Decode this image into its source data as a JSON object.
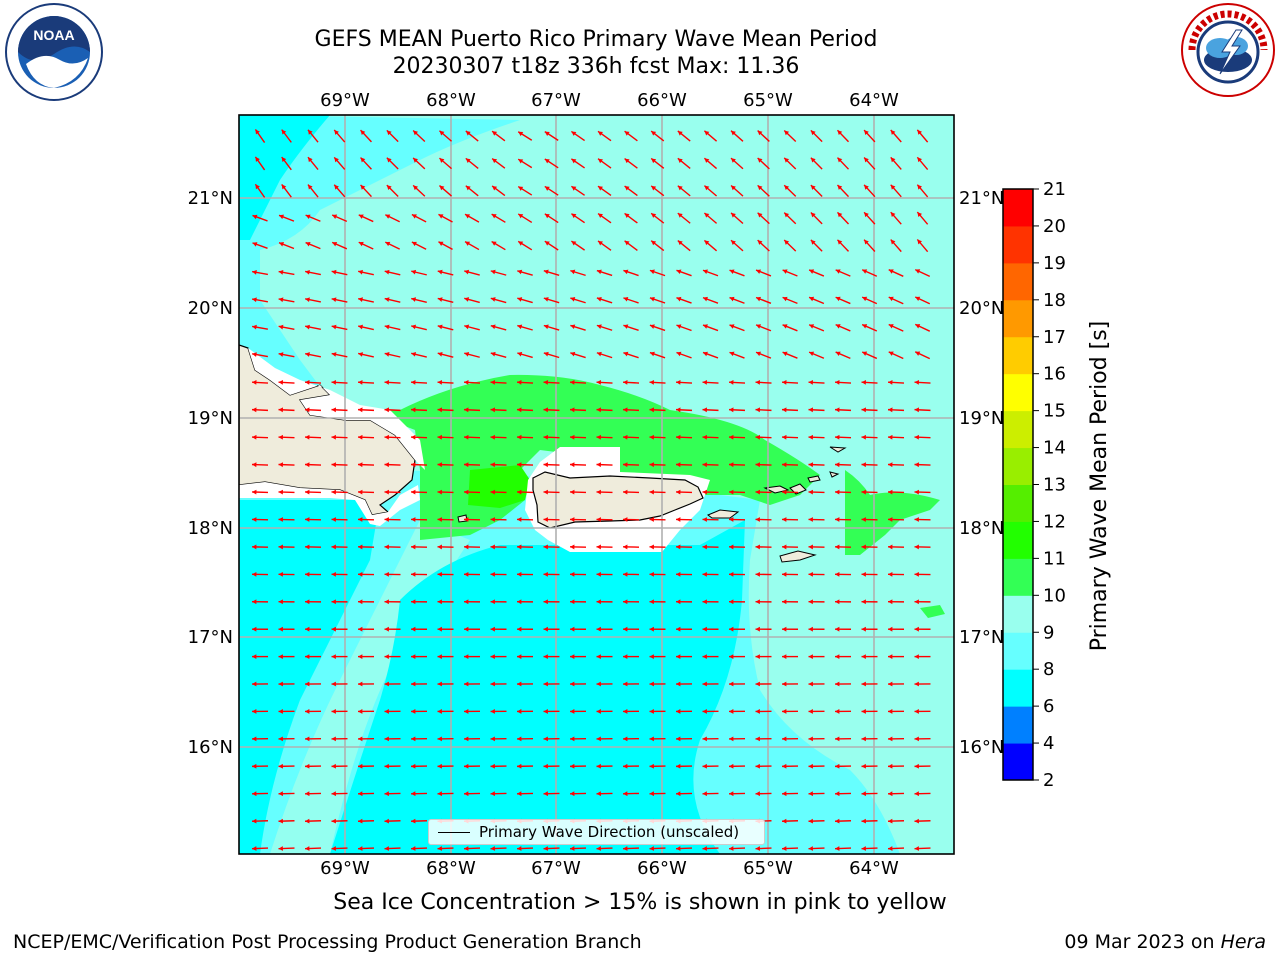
{
  "title": {
    "line1": "GEFS MEAN Puerto Rico Primary Wave Mean Period",
    "line2": "20230307 t18z 336h fcst   Max: 11.36"
  },
  "axes": {
    "lon_labels": [
      "69°W",
      "68°W",
      "67°W",
      "66°W",
      "65°W",
      "64°W"
    ],
    "lat_labels": [
      "21°N",
      "20°N",
      "19°N",
      "18°N",
      "17°N",
      "16°N"
    ]
  },
  "legend": {
    "label": "Primary Wave Direction (unscaled)"
  },
  "colorbar": {
    "label": "Primary Wave Mean Period [s]",
    "ticks": [
      "2",
      "4",
      "6",
      "8",
      "9",
      "10",
      "11",
      "12",
      "13",
      "14",
      "15",
      "16",
      "17",
      "18",
      "19",
      "20",
      "21"
    ],
    "colors": [
      "#0000ff",
      "#0080ff",
      "#00ffff",
      "#66ffff",
      "#99ffee",
      "#33ff55",
      "#22ff00",
      "#55ee00",
      "#99ee00",
      "#ccee00",
      "#ffff00",
      "#ffcc00",
      "#ff9900",
      "#ff6600",
      "#ff3300",
      "#ff0000"
    ]
  },
  "logos": {
    "noaa": "NOAA",
    "nws": "NATIONAL WEATHER SERVICE"
  },
  "notes": {
    "ice": "Sea Ice Concentration > 15% is shown in pink to yellow",
    "footer_left": "NCEP/EMC/Verification Post Processing Product Generation Branch",
    "footer_date": "09 Mar 2023 on ",
    "footer_host": "Hera"
  },
  "colors": {
    "land": "#efecdc",
    "arrow": "#ff0000",
    "grid": "#b0b0b0"
  }
}
